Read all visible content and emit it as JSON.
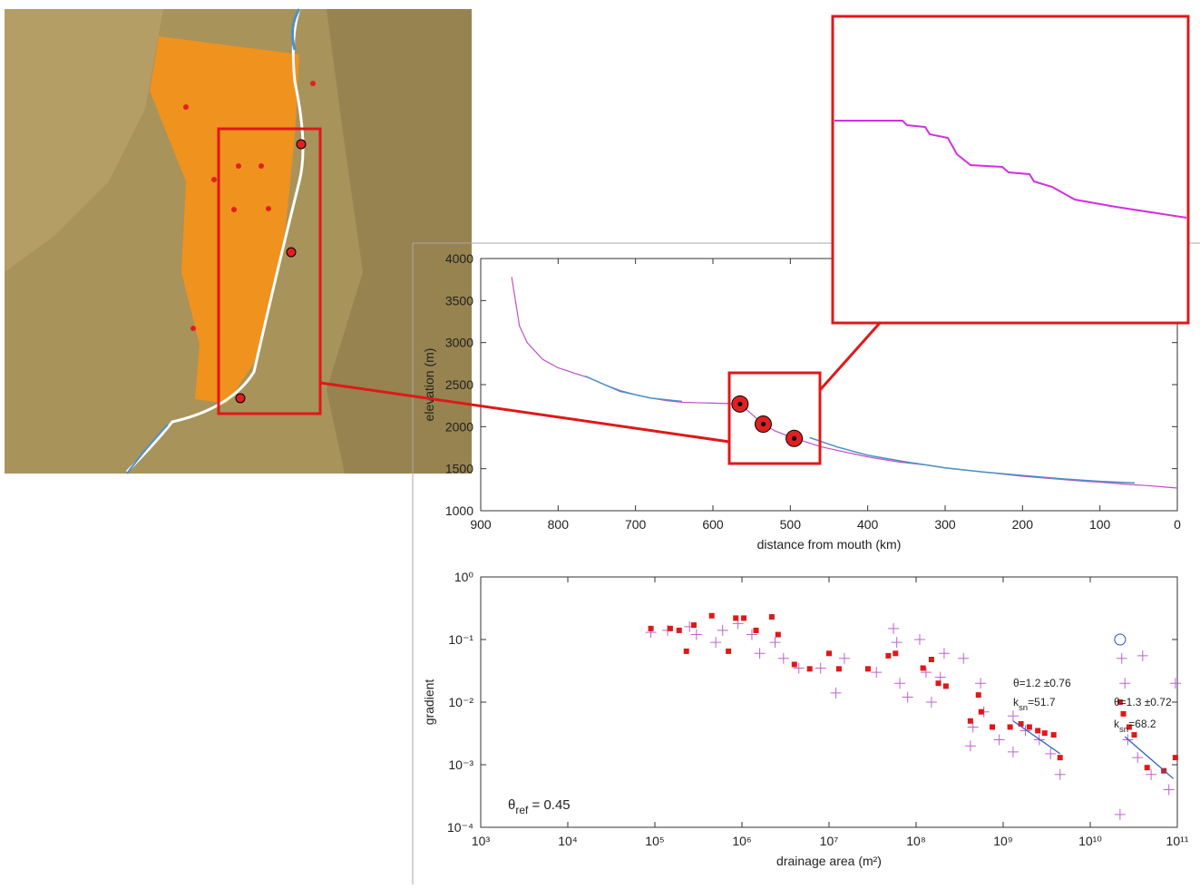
{
  "chart_data": [
    {
      "type": "line",
      "xlabel": "distance from mouth (km)",
      "ylabel": "elevation (m)",
      "xlim": [
        900,
        0
      ],
      "ylim": [
        1000,
        4000
      ],
      "xticks": [
        900,
        800,
        700,
        600,
        500,
        400,
        300,
        200,
        100,
        0
      ],
      "yticks": [
        1000,
        1500,
        2000,
        2500,
        3000,
        3500,
        4000
      ],
      "series": [
        {
          "color": "#c050c8",
          "x": [
            860,
            850,
            840,
            820,
            800,
            780,
            760,
            740,
            720,
            700,
            680,
            660,
            640,
            620,
            600,
            580,
            565,
            550,
            535,
            520,
            495,
            480,
            460,
            440,
            420,
            400,
            380,
            360,
            340,
            320,
            300,
            280,
            260,
            240,
            220,
            200,
            180,
            160,
            140,
            120,
            100,
            80,
            60,
            40,
            20,
            0
          ],
          "values": [
            3780,
            3200,
            3000,
            2800,
            2700,
            2640,
            2580,
            2500,
            2430,
            2380,
            2340,
            2310,
            2290,
            2285,
            2280,
            2275,
            2270,
            2150,
            2030,
            1950,
            1860,
            1820,
            1760,
            1720,
            1680,
            1640,
            1610,
            1580,
            1560,
            1540,
            1510,
            1490,
            1470,
            1450,
            1430,
            1410,
            1395,
            1380,
            1365,
            1350,
            1340,
            1325,
            1310,
            1300,
            1285,
            1270
          ]
        },
        {
          "color": "#4a90c8",
          "x": [
            765,
            720,
            680,
            640,
            null,
            475,
            440,
            400,
            350,
            300,
            250,
            200,
            150,
            100,
            55
          ],
          "values": [
            2600,
            2420,
            2340,
            2300,
            null,
            1870,
            1760,
            1660,
            1580,
            1510,
            1460,
            1420,
            1380,
            1350,
            1330
          ]
        }
      ],
      "points": {
        "color": "#e02020",
        "x": [
          565,
          535,
          495
        ],
        "values": [
          2270,
          2030,
          1860
        ]
      }
    },
    {
      "type": "scatter",
      "xlabel": "drainage area (m²)",
      "ylabel": "gradient",
      "log": true,
      "xlim": [
        1000,
        100000000000
      ],
      "ylim": [
        0.0001,
        1
      ],
      "xticks": [
        {
          "value": 1000,
          "label": "10³"
        },
        {
          "value": 10000,
          "label": "10⁴"
        },
        {
          "value": 100000,
          "label": "10⁵"
        },
        {
          "value": 1000000,
          "label": "10⁶"
        },
        {
          "value": 10000000,
          "label": "10⁷"
        },
        {
          "value": 100000000,
          "label": "10⁸"
        },
        {
          "value": 1000000000,
          "label": "10⁹"
        },
        {
          "value": 10000000000,
          "label": "10¹⁰"
        },
        {
          "value": 100000000000,
          "label": "10¹¹"
        }
      ],
      "yticks": [
        {
          "value": 0.0001,
          "label": "10⁻⁴"
        },
        {
          "value": 0.001,
          "label": "10⁻³"
        },
        {
          "value": 0.01,
          "label": "10⁻²"
        },
        {
          "value": 0.1,
          "label": "10⁻¹"
        },
        {
          "value": 1,
          "label": "10⁰"
        }
      ],
      "series": [
        {
          "color": "#c060d0",
          "marker": "cross",
          "x": [
            90000,
            140000,
            250000,
            300000,
            500000,
            600000,
            900000,
            1300000,
            1600000,
            2400000,
            3000000,
            4500000,
            8000000,
            12000000,
            15000000,
            35000000,
            55000000,
            60000000,
            65000000,
            80000000,
            110000000,
            130000000,
            150000000,
            190000000,
            210000000,
            350000000,
            450000000,
            550000000,
            600000000,
            900000000,
            1300000000,
            1800000000,
            2600000000,
            3500000000,
            4500000000,
            22000000000,
            23000000000,
            25000000000,
            27000000000,
            35000000000,
            40000000000,
            50000000000,
            80000000000,
            95000000000,
            1300000000,
            420000000
          ],
          "values": [
            0.13,
            0.14,
            0.16,
            0.12,
            0.09,
            0.14,
            0.18,
            0.12,
            0.06,
            0.09,
            0.05,
            0.035,
            0.035,
            0.014,
            0.05,
            0.03,
            0.15,
            0.09,
            0.02,
            0.012,
            0.1,
            0.03,
            0.01,
            0.025,
            0.06,
            0.05,
            0.004,
            0.02,
            0.007,
            0.0025,
            0.006,
            0.0035,
            0.0025,
            0.0015,
            0.0007,
            0.00016,
            0.05,
            0.02,
            0.0025,
            0.0013,
            0.055,
            0.0007,
            0.0004,
            0.02,
            0.0016,
            0.002
          ]
        },
        {
          "color": "#e01818",
          "marker": "square",
          "x": [
            90000,
            150000,
            190000,
            230000,
            280000,
            450000,
            700000,
            850000,
            1050000,
            1450000,
            2200000,
            2600000,
            4000000,
            6000000,
            10000000,
            13000000,
            28000000,
            48000000,
            58000000,
            120000000,
            150000000,
            180000000,
            220000000,
            420000000,
            520000000,
            560000000,
            750000000,
            1200000000,
            1600000000,
            2000000000,
            2500000000,
            3000000000,
            3800000000,
            4500000000,
            22000000000,
            24000000000,
            28000000000,
            32000000000,
            45000000000,
            70000000000,
            95000000000
          ],
          "values": [
            0.15,
            0.15,
            0.14,
            0.065,
            0.17,
            0.24,
            0.065,
            0.22,
            0.22,
            0.14,
            0.23,
            0.12,
            0.04,
            0.034,
            0.06,
            0.034,
            0.034,
            0.055,
            0.06,
            0.035,
            0.048,
            0.02,
            0.018,
            0.005,
            0.013,
            0.007,
            0.004,
            0.004,
            0.0045,
            0.004,
            0.0035,
            0.0032,
            0.003,
            0.0013,
            0.01,
            0.0065,
            0.004,
            0.003,
            0.0009,
            0.0008,
            0.0013
          ]
        },
        {
          "color": "#3050c0",
          "marker": "circle",
          "x": [
            22000000000
          ],
          "values": [
            0.1
          ]
        }
      ],
      "fits": [
        {
          "color": "#3060c0",
          "x": [
            1300000000,
            4500000000
          ],
          "values": [
            0.005,
            0.0015
          ]
        },
        {
          "color": "#3060c0",
          "x": [
            25000000000,
            90000000000
          ],
          "values": [
            0.0028,
            0.0006
          ]
        }
      ],
      "annotations": [
        {
          "parts": [
            "θ=1.2 ±0.76"
          ]
        },
        {
          "parts": [
            "k",
            "sn",
            "=51.7"
          ]
        },
        {
          "parts": [
            "θ=1.3 ±0.72"
          ]
        },
        {
          "parts": [
            "k",
            "sn",
            "=68.2"
          ]
        },
        {
          "parts": [
            "θ",
            "ref",
            " = 0.45"
          ]
        }
      ]
    }
  ]
}
